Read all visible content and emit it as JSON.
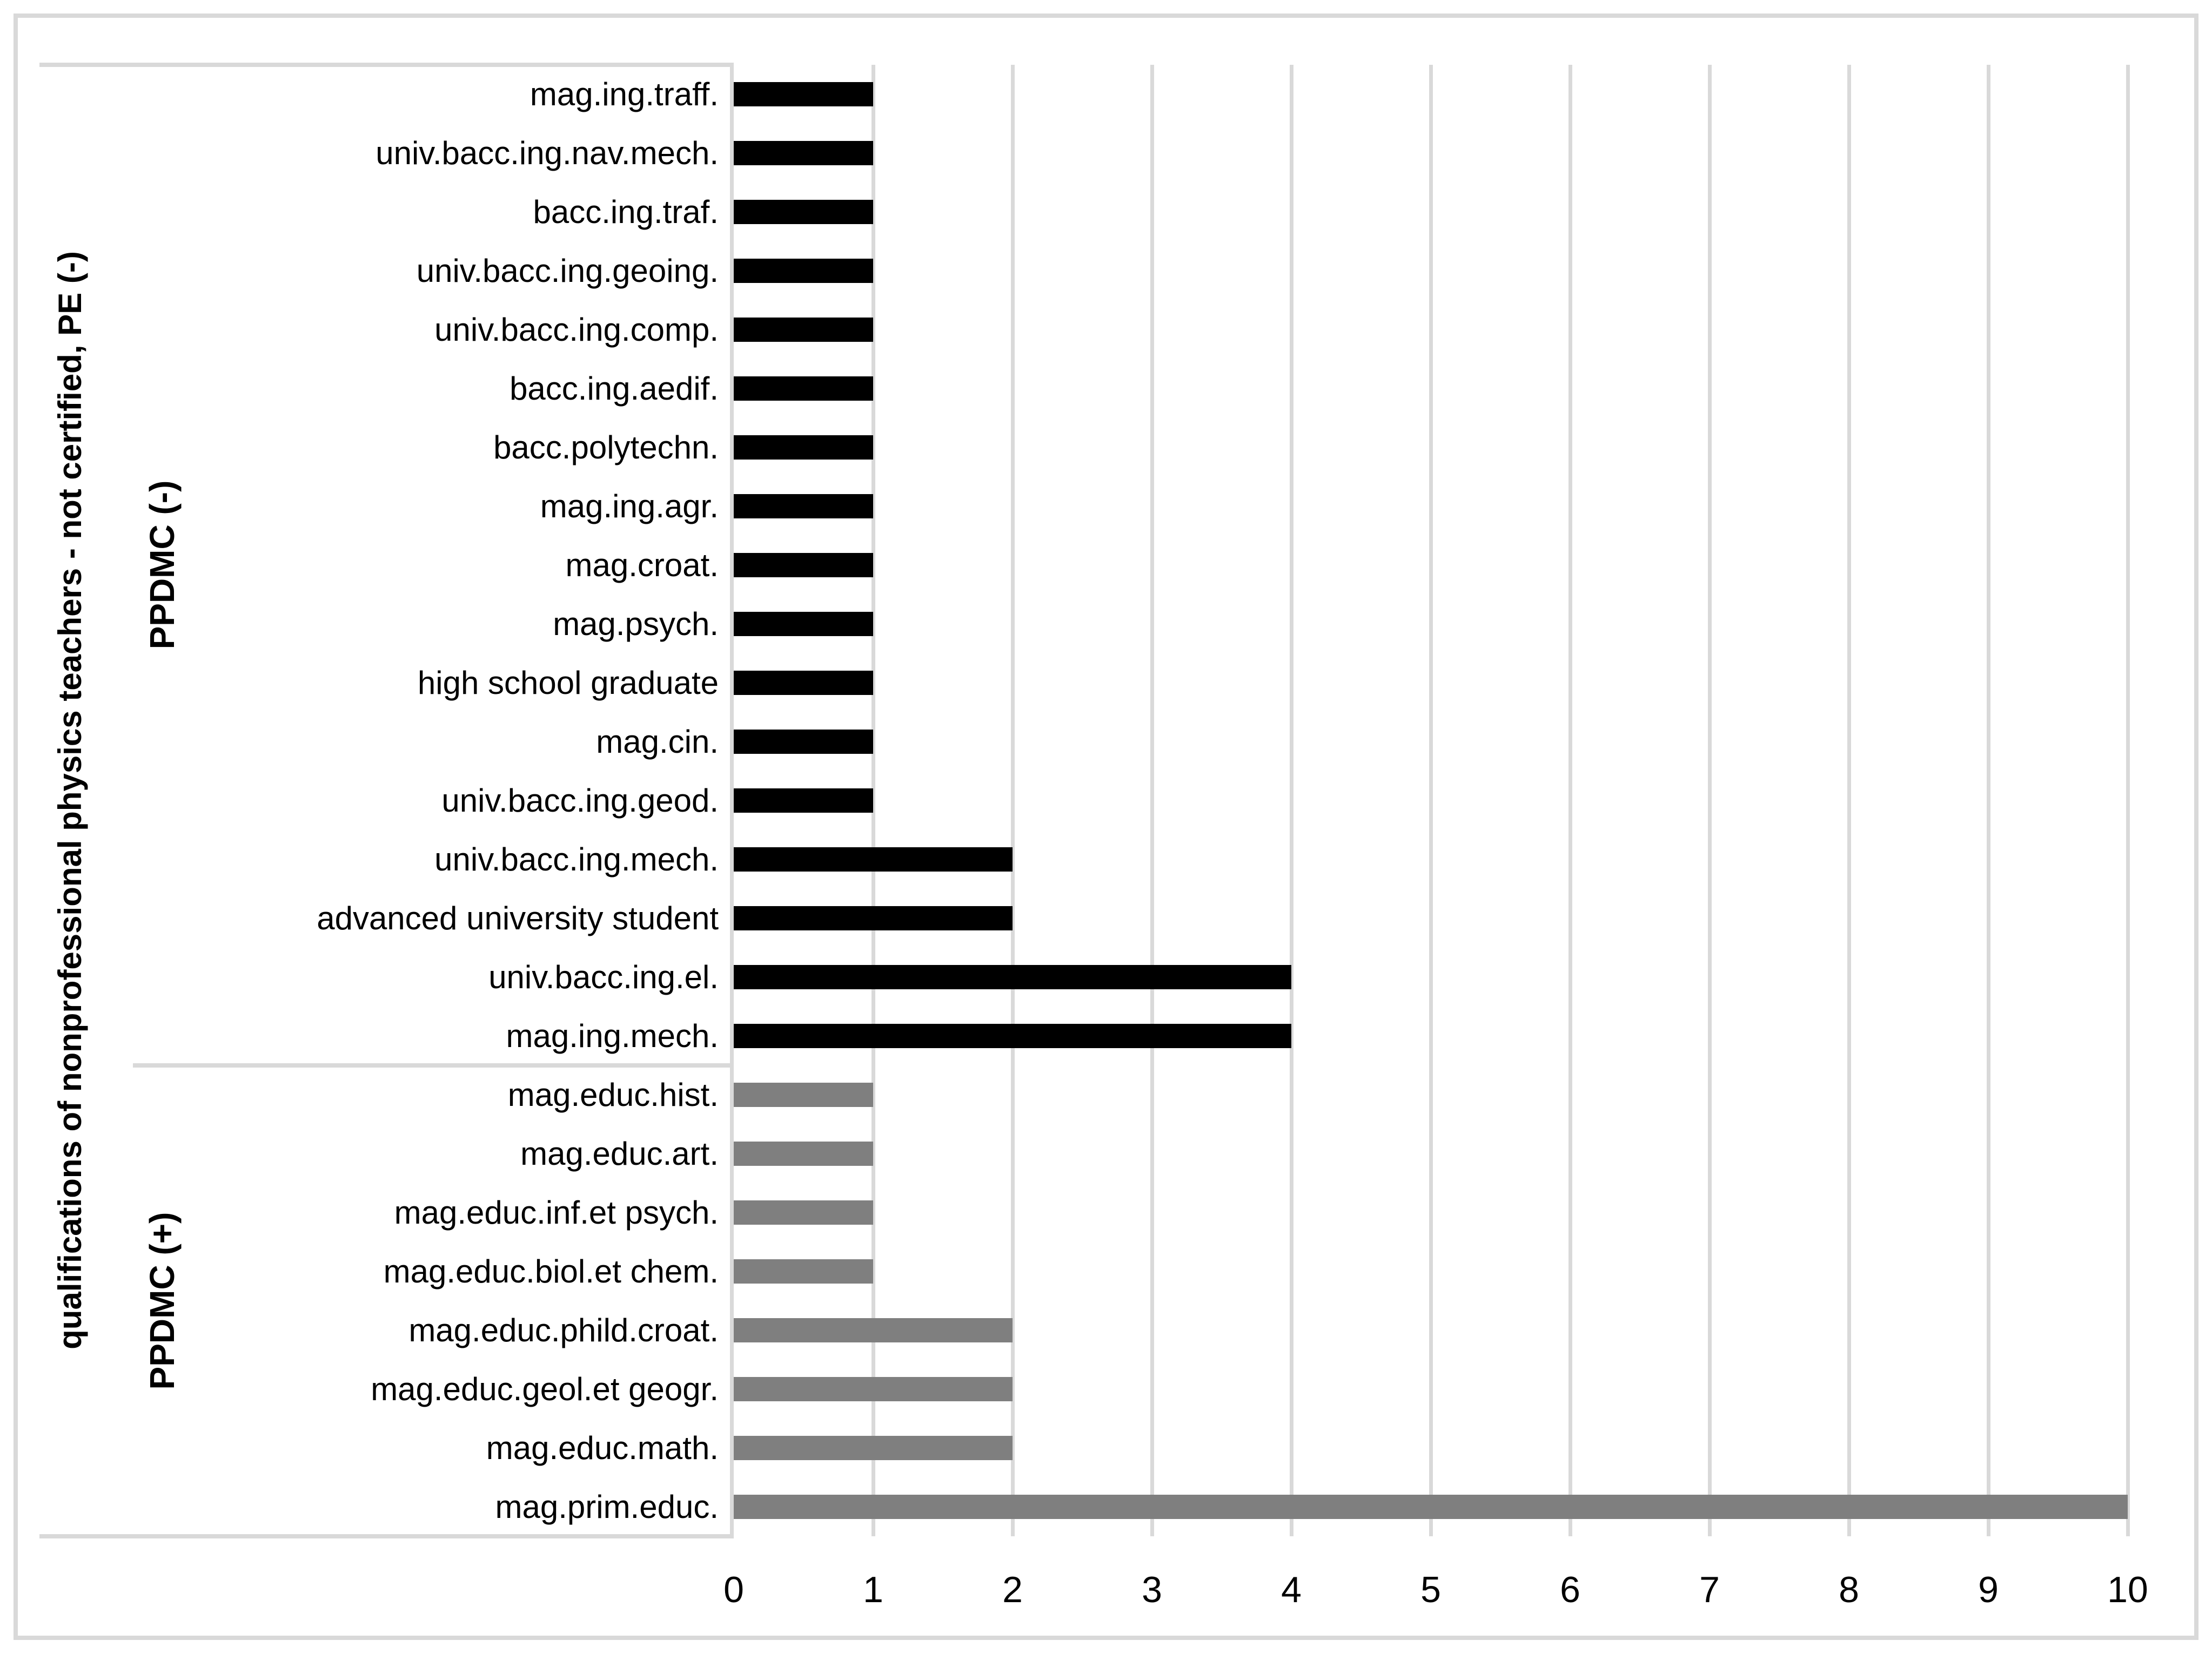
{
  "chart_data": {
    "type": "bar",
    "orientation": "horizontal",
    "y_axis_title": "qualifications of nonprofessional physics teachers - not certified, PE (-)",
    "xlim": [
      0,
      10
    ],
    "x_ticks": [
      0,
      1,
      2,
      3,
      4,
      5,
      6,
      7,
      8,
      9,
      10
    ],
    "grid": true,
    "legend": "none",
    "colors": {
      "bar_group_negative": "#000000",
      "bar_group_positive": "#7F7F7F",
      "gridline": "#D9D9D9",
      "text": "#000000"
    },
    "groups": [
      {
        "label": "PPDMC (-)",
        "color": "#000000",
        "items": [
          {
            "label": "mag.ing.traff.",
            "value": 1
          },
          {
            "label": "univ.bacc.ing.nav.mech.",
            "value": 1
          },
          {
            "label": "bacc.ing.traf.",
            "value": 1
          },
          {
            "label": "univ.bacc.ing.geoing.",
            "value": 1
          },
          {
            "label": "univ.bacc.ing.comp.",
            "value": 1
          },
          {
            "label": "bacc.ing.aedif.",
            "value": 1
          },
          {
            "label": "bacc.polytechn.",
            "value": 1
          },
          {
            "label": "mag.ing.agr.",
            "value": 1
          },
          {
            "label": "mag.croat.",
            "value": 1
          },
          {
            "label": "mag.psych.",
            "value": 1
          },
          {
            "label": "high school graduate",
            "value": 1
          },
          {
            "label": "mag.cin.",
            "value": 1
          },
          {
            "label": "univ.bacc.ing.geod.",
            "value": 1
          },
          {
            "label": "univ.bacc.ing.mech.",
            "value": 2
          },
          {
            "label": "advanced university student",
            "value": 2
          },
          {
            "label": "univ.bacc.ing.el.",
            "value": 4
          },
          {
            "label": "mag.ing.mech.",
            "value": 4
          }
        ]
      },
      {
        "label": "PPDMC (+)",
        "color": "#7F7F7F",
        "items": [
          {
            "label": "mag.educ.hist.",
            "value": 1
          },
          {
            "label": "mag.educ.art.",
            "value": 1
          },
          {
            "label": "mag.educ.inf.et psych.",
            "value": 1
          },
          {
            "label": "mag.educ.biol.et chem.",
            "value": 1
          },
          {
            "label": "mag.educ.phild.croat.",
            "value": 2
          },
          {
            "label": "mag.educ.geol.et geogr.",
            "value": 2
          },
          {
            "label": "mag.educ.math.",
            "value": 2
          },
          {
            "label": "mag.prim.educ.",
            "value": 10
          }
        ]
      }
    ]
  }
}
